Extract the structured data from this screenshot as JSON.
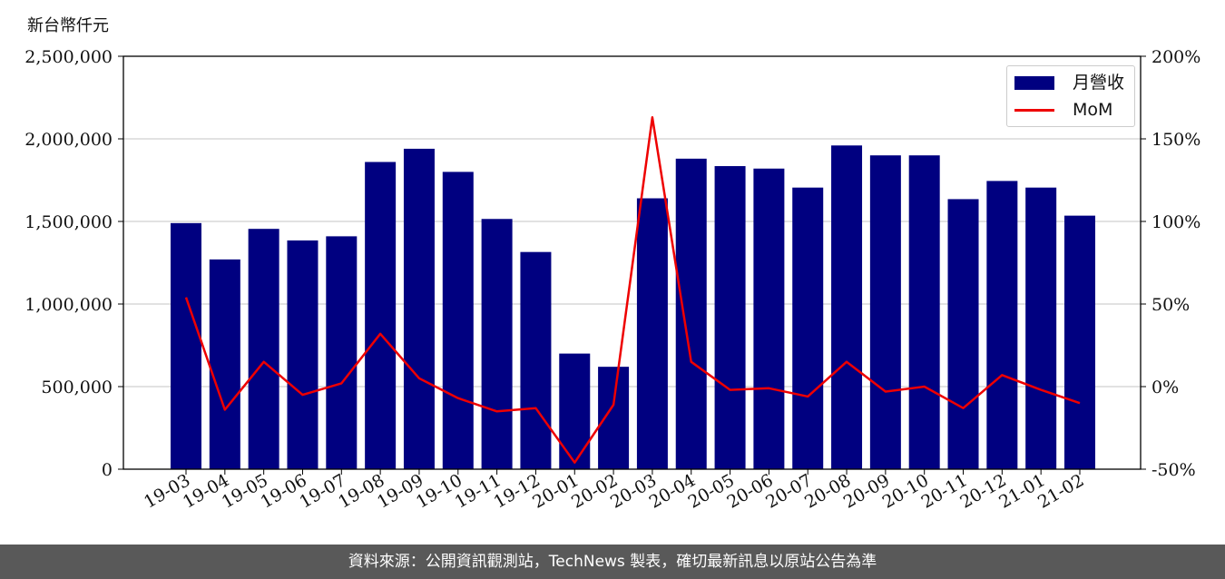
{
  "unit_label": "新台幣仟元",
  "footer_text": "資料來源：公開資訊觀測站，TechNews 製表，確切最新訊息以原站公告為準",
  "colors": {
    "bar": "#000080",
    "line": "#ee0000",
    "grid": "#d0d0d0"
  },
  "chart_data": {
    "type": "bar",
    "categories": [
      "19-03",
      "19-04",
      "19-05",
      "19-06",
      "19-07",
      "19-08",
      "19-09",
      "19-10",
      "19-11",
      "19-12",
      "20-01",
      "20-02",
      "20-03",
      "20-04",
      "20-05",
      "20-06",
      "20-07",
      "20-08",
      "20-09",
      "20-10",
      "20-11",
      "20-12",
      "21-01",
      "21-02"
    ],
    "series": [
      {
        "name": "月營收",
        "type": "bar",
        "axis": "left",
        "values": [
          1490000,
          1270000,
          1455000,
          1385000,
          1410000,
          1860000,
          1940000,
          1800000,
          1515000,
          1315000,
          700000,
          620000,
          1640000,
          1880000,
          1835000,
          1820000,
          1705000,
          1960000,
          1900000,
          1900000,
          1635000,
          1745000,
          1705000,
          1535000
        ]
      },
      {
        "name": "MoM",
        "type": "line",
        "axis": "right",
        "values": [
          54,
          -14,
          15,
          -5,
          2,
          32,
          5,
          -7,
          -15,
          -13,
          -46,
          -11,
          163,
          15,
          -2,
          -1,
          -6,
          15,
          -3,
          0,
          -13,
          7,
          -2,
          -10
        ]
      }
    ],
    "ylim_left": [
      0,
      2500000
    ],
    "yticks_left": [
      "0",
      "500,000",
      "1,000,000",
      "1,500,000",
      "2,000,000",
      "2,500,000"
    ],
    "ylim_right": [
      -50,
      200
    ],
    "yticks_right": [
      "-50%",
      "0%",
      "50%",
      "100%",
      "150%",
      "200%"
    ],
    "grid": true,
    "legend_position": "upper-right"
  }
}
